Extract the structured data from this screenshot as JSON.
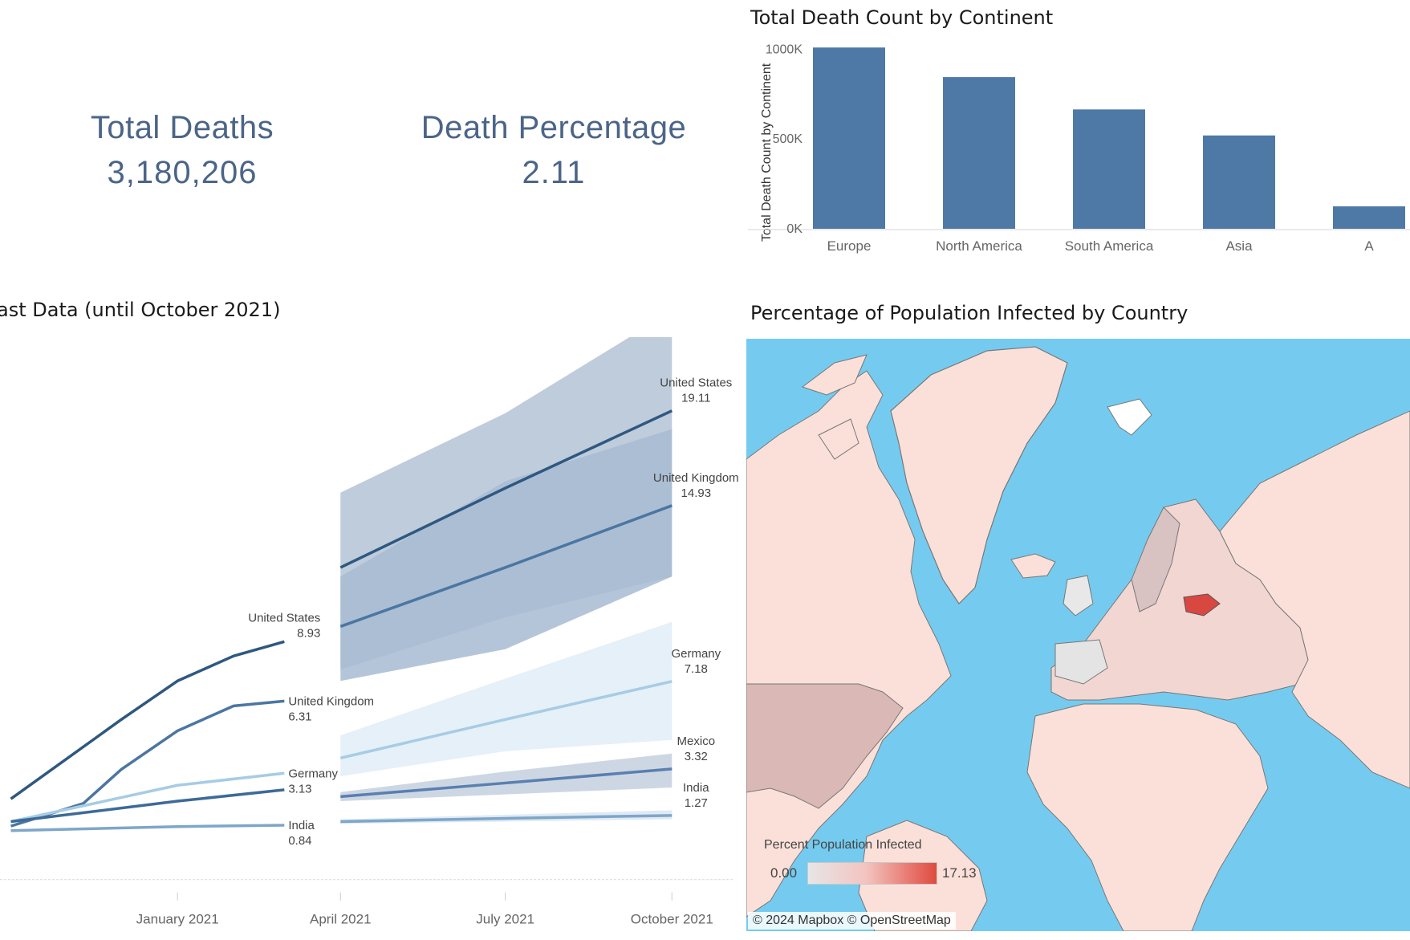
{
  "kpis": {
    "total_deaths_label": "Total Deaths",
    "total_deaths_value": "3,180,206",
    "death_percentage_label": "Death Percentage",
    "death_percentage_value": "2.11"
  },
  "titles": {
    "bar": "Total Death Count by Continent",
    "line": "ast Data (until October 2021)",
    "map": "Percentage of Population Infected by Country"
  },
  "chart_data": [
    {
      "type": "bar",
      "title": "Total Death Count by Continent",
      "ylabel": "Total Death Count by Continent",
      "xlabel": "",
      "categories": [
        "Europe",
        "North America",
        "South America",
        "Asia",
        "A"
      ],
      "values": [
        1010000,
        845000,
        665000,
        520000,
        125000
      ],
      "yticks": [
        0,
        500000,
        1000000
      ],
      "ytick_labels": [
        "0K",
        "500K",
        "1000K"
      ],
      "ylim": [
        0,
        1060000
      ],
      "grid": false,
      "color": "#4e79a7"
    },
    {
      "type": "line",
      "title": "ast Data (until October 2021)",
      "xlabel": "",
      "ylabel": "",
      "x_ticks": [
        "January 2021",
        "April 2021",
        "July 2021",
        "October 2021"
      ],
      "xlim": [
        "2020-09-25",
        "2021-10-31"
      ],
      "ylim": [
        -1,
        22
      ],
      "series": [
        {
          "name": "United States",
          "color": "#2f5880",
          "band": "#b3c3d6",
          "actual": {
            "x": [
              "2020-10-01",
              "2020-12-01",
              "2021-01-01",
              "2021-02-01",
              "2021-03-01"
            ],
            "y": [
              2.0,
              5.5,
              7.2,
              8.3,
              8.93
            ]
          },
          "actual_label": "8.93",
          "forecast": {
            "x": [
              "2021-04-01",
              "2021-07-01",
              "2021-10-01"
            ],
            "y": [
              12.2,
              15.7,
              19.11
            ]
          },
          "band_low": [
            7.7,
            10.0,
            11.8
          ],
          "band_high": [
            15.5,
            19.0,
            23.5
          ],
          "forecast_label": "19.11"
        },
        {
          "name": "United Kingdom",
          "color": "#4b76a1",
          "band": "#a8bbd2",
          "actual": {
            "x": [
              "2020-10-01",
              "2020-11-10",
              "2020-12-01",
              "2021-01-01",
              "2021-02-01",
              "2021-03-01"
            ],
            "y": [
              0.8,
              1.8,
              3.3,
              5.0,
              6.1,
              6.31
            ]
          },
          "actual_label": "6.31",
          "forecast": {
            "x": [
              "2021-04-01",
              "2021-07-01",
              "2021-10-01"
            ],
            "y": [
              9.6,
              12.2,
              14.93
            ]
          },
          "band_low": [
            7.2,
            8.6,
            11.8
          ],
          "band_high": [
            11.8,
            16.0,
            18.3
          ],
          "forecast_label": "14.93"
        },
        {
          "name": "Germany",
          "color": "#a7cce4",
          "band": "#e1edf7",
          "actual": {
            "x": [
              "2020-10-01",
              "2021-01-01",
              "2021-03-01"
            ],
            "y": [
              1.0,
              2.6,
              3.13
            ]
          },
          "actual_label": "3.13",
          "forecast": {
            "x": [
              "2021-04-01",
              "2021-07-01",
              "2021-10-01"
            ],
            "y": [
              3.8,
              5.5,
              7.18
            ]
          },
          "band_low": [
            3.0,
            4.1,
            4.6
          ],
          "band_high": [
            4.8,
            7.3,
            9.8
          ],
          "forecast_label": "7.18"
        },
        {
          "name": "Mexico",
          "color": "#5a7fb0",
          "band": "#c4d0df",
          "actual": null,
          "actual_label": "",
          "forecast": {
            "x": [
              "2021-04-01",
              "2021-07-01",
              "2021-10-01"
            ],
            "y": [
              2.1,
              2.7,
              3.32
            ]
          },
          "band_low": [
            1.9,
            2.2,
            2.5
          ],
          "band_high": [
            2.3,
            3.2,
            4.0
          ],
          "forecast_label": "3.32"
        },
        {
          "name": "India",
          "color": "#7ea6c9",
          "band": "#d9e6f1",
          "actual": {
            "x": [
              "2020-10-01",
              "2021-01-01",
              "2021-03-01"
            ],
            "y": [
              0.6,
              0.78,
              0.84
            ]
          },
          "actual_label": "0.84",
          "forecast": {
            "x": [
              "2021-04-01",
              "2021-07-01",
              "2021-10-01"
            ],
            "y": [
              1.0,
              1.14,
              1.27
            ]
          },
          "band_low": [
            0.9,
            1.0,
            1.1
          ],
          "band_high": [
            1.1,
            1.3,
            1.5
          ],
          "forecast_label": "1.27"
        },
        {
          "name": "",
          "color": "#3d6a98",
          "band": "",
          "actual": {
            "x": [
              "2020-10-01",
              "2021-01-01",
              "2021-03-01"
            ],
            "y": [
              1.0,
              1.9,
              2.4
            ]
          },
          "actual_label": "",
          "forecast": null,
          "band_low": null,
          "band_high": null,
          "forecast_label": ""
        }
      ]
    }
  ],
  "map": {
    "legend_title": "Percent Population Infected",
    "legend_min": "0.00",
    "legend_max": "17.13",
    "attribution": "© 2024 Mapbox  © OpenStreetMap",
    "ocean_color": "#75cbef",
    "land_color": "#fbe0d9",
    "highlight_color": "#d94840"
  }
}
